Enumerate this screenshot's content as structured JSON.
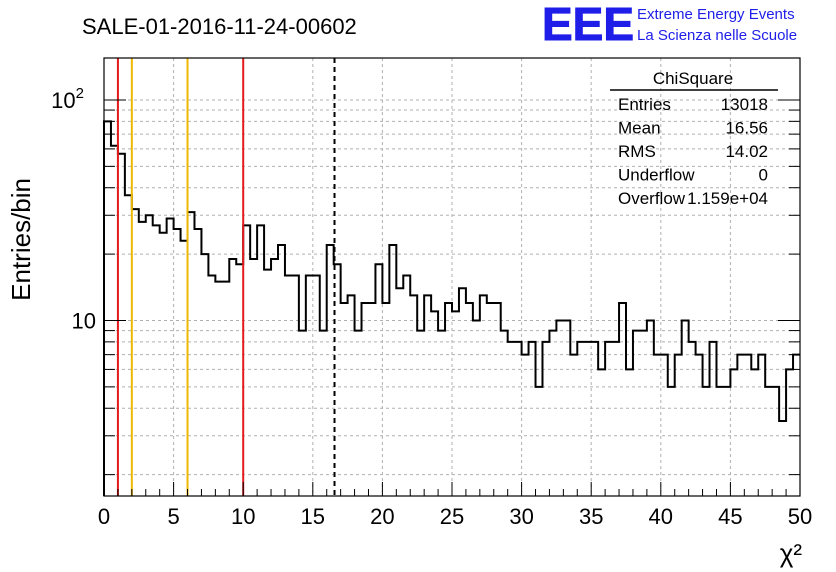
{
  "chart_data": {
    "type": "bar",
    "title": "SALE-01-2016-11-24-00602",
    "xlabel": "χ²",
    "ylabel": "Entries/bin",
    "xlim": [
      0,
      50
    ],
    "ylim": [
      1.6,
      155
    ],
    "log_y": true,
    "grid": true,
    "x_ticks": [
      "0",
      "5",
      "10",
      "15",
      "20",
      "25",
      "30",
      "35",
      "40",
      "45",
      "50"
    ],
    "y_ticks": [
      {
        "value": 10,
        "label": "10"
      },
      {
        "value": 100,
        "label": "10",
        "sup": "2"
      }
    ],
    "bin_width": 0.5,
    "values": [
      80,
      62,
      57,
      37,
      32,
      28,
      30,
      27,
      25,
      29,
      26,
      23,
      31,
      26,
      20,
      16,
      15,
      15,
      19,
      18,
      27,
      19,
      27,
      17,
      19,
      22,
      16,
      16,
      9,
      16,
      16,
      9,
      22,
      18,
      12,
      13,
      9,
      12,
      12,
      18,
      12,
      22,
      14,
      16,
      13,
      9,
      13,
      11,
      9,
      12,
      11,
      14,
      12,
      10,
      13,
      12,
      12,
      9,
      8,
      8,
      7,
      8,
      5,
      8,
      9,
      10,
      10,
      7,
      8,
      8,
      8,
      6,
      8,
      8,
      12,
      6,
      9,
      9,
      10,
      7,
      7,
      5,
      7,
      10,
      8,
      7,
      5,
      8,
      5,
      5,
      6,
      7,
      7,
      6,
      7,
      5,
      5,
      3.5,
      6,
      7
    ],
    "lines": [
      {
        "x": 1,
        "color": "#e41a1c",
        "style": "solid"
      },
      {
        "x": 2,
        "color": "#f0b800",
        "style": "solid"
      },
      {
        "x": 6,
        "color": "#f0b800",
        "style": "solid"
      },
      {
        "x": 10,
        "color": "#e41a1c",
        "style": "solid"
      },
      {
        "x": 16.56,
        "color": "#000000",
        "style": "dashed"
      }
    ],
    "stats": {
      "name": "ChiSquare",
      "rows": [
        {
          "label": "Entries",
          "value": "13018"
        },
        {
          "label": "Mean",
          "value": "16.56"
        },
        {
          "label": "RMS",
          "value": "14.02"
        },
        {
          "label": "Underflow",
          "value": "0"
        },
        {
          "label": "Overflow",
          "value": "1.159e+04"
        }
      ]
    },
    "logo": {
      "mark": "EEE",
      "line1": "Extreme Energy Events",
      "line2": "La Scienza nelle Scuole",
      "color": "#1e1ee8"
    }
  }
}
